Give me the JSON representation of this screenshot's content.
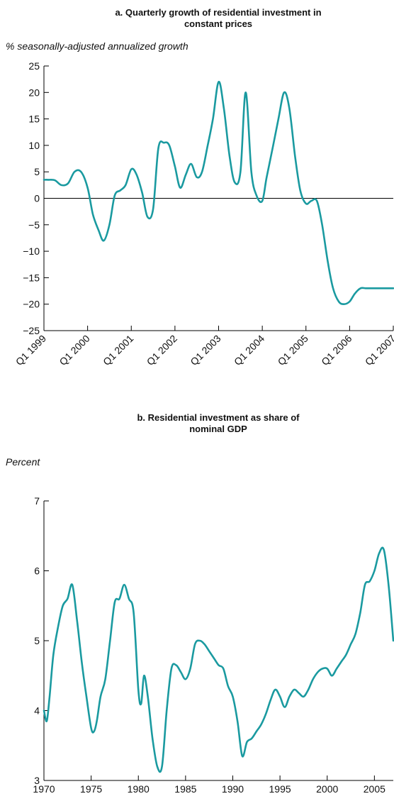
{
  "chart_data": [
    {
      "type": "line",
      "title_lines": [
        "a. Quarterly growth of residential investment in",
        "constant prices"
      ],
      "ylabel": "% seasonally-adjusted annualized growth",
      "xlabel": "",
      "ylim": [
        -25,
        25
      ],
      "xlim": [
        1999.0,
        2007.0
      ],
      "yticks": [
        25,
        20,
        15,
        10,
        5,
        0,
        -5,
        -10,
        -15,
        -20,
        -25
      ],
      "ytick_labels": [
        "25",
        "20",
        "15",
        "10",
        "5",
        "0",
        "−5",
        "−10",
        "−15",
        "−20",
        "−25"
      ],
      "xticks": [
        1999,
        2000,
        2001,
        2002,
        2003,
        2004,
        2005,
        2006,
        2007
      ],
      "xtick_labels": [
        "Q1 1999",
        "Q1 2000",
        "Q1 2001",
        "Q1 2002",
        "Q1 2003",
        "Q1 2004",
        "Q1 2005",
        "Q1 2006",
        "Q1 2007"
      ],
      "zero_line": true,
      "color": "#1a9aa0",
      "series": [
        {
          "x": [
            1999.0,
            1999.1,
            1999.25,
            1999.4,
            1999.55,
            1999.7,
            1999.85,
            2000.0,
            2000.12,
            2000.25,
            2000.37,
            2000.5,
            2000.62,
            2000.75,
            2000.87,
            2001.0,
            2001.12,
            2001.25,
            2001.37,
            2001.5,
            2001.62,
            2001.75,
            2001.87,
            2002.0,
            2002.12,
            2002.25,
            2002.37,
            2002.5,
            2002.62,
            2002.75,
            2002.87,
            2003.0,
            2003.12,
            2003.25,
            2003.37,
            2003.5,
            2003.62,
            2003.75,
            2003.87,
            2004.0,
            2004.1,
            2004.25,
            2004.37,
            2004.5,
            2004.62,
            2004.75,
            2004.87,
            2005.0,
            2005.12,
            2005.25,
            2005.37,
            2005.5,
            2005.62,
            2005.75,
            2005.87,
            2006.0,
            2006.12,
            2006.25,
            2006.37,
            2006.5,
            2006.62,
            2006.75,
            2006.87,
            2007.0
          ],
          "y": [
            3.5,
            3.5,
            3.4,
            2.5,
            2.8,
            5.0,
            5.0,
            2.0,
            -3.0,
            -6.0,
            -8.0,
            -5.0,
            0.5,
            1.5,
            2.5,
            5.5,
            4.5,
            1.0,
            -3.5,
            -2.0,
            9.5,
            10.5,
            10.0,
            6.0,
            2.0,
            4.5,
            6.5,
            4.0,
            5.0,
            10.0,
            15.0,
            22.0,
            17.0,
            8.0,
            3.0,
            5.0,
            20.0,
            5.0,
            0.5,
            -0.5,
            4.0,
            10.0,
            15.0,
            20.0,
            17.0,
            8.0,
            1.5,
            -1.0,
            -0.5,
            -0.5,
            -5.0,
            -12.0,
            -17.0,
            -19.5,
            -20.0,
            -19.5,
            -18.0,
            -17.0,
            -17.0,
            -17.0,
            -17.0,
            -17.0,
            -17.0,
            -17.0
          ]
        }
      ]
    },
    {
      "type": "line",
      "title_lines": [
        "b. Residential investment as share of",
        "nominal GDP"
      ],
      "ylabel": "Percent",
      "xlabel": "",
      "ylim": [
        3,
        7
      ],
      "xlim": [
        1970.0,
        2007.0
      ],
      "yticks": [
        7,
        6,
        5,
        4,
        3
      ],
      "ytick_labels": [
        "7",
        "6",
        "5",
        "4",
        "3"
      ],
      "xticks": [
        1970,
        1975,
        1980,
        1985,
        1990,
        1995,
        2000,
        2005
      ],
      "xtick_labels": [
        "1970",
        "1975",
        "1980",
        "1985",
        "1990",
        "1995",
        "2000",
        "2005"
      ],
      "zero_line": false,
      "color": "#1a9aa0",
      "series": [
        {
          "x": [
            1970.0,
            1970.3,
            1970.6,
            1971.0,
            1971.5,
            1972.0,
            1972.5,
            1973.0,
            1973.5,
            1974.0,
            1974.5,
            1975.0,
            1975.3,
            1975.6,
            1976.0,
            1976.5,
            1977.0,
            1977.5,
            1978.0,
            1978.5,
            1979.0,
            1979.5,
            1980.0,
            1980.3,
            1980.6,
            1981.0,
            1981.5,
            1982.0,
            1982.5,
            1983.0,
            1983.5,
            1984.0,
            1984.5,
            1985.0,
            1985.5,
            1986.0,
            1986.5,
            1987.0,
            1987.5,
            1988.0,
            1988.5,
            1989.0,
            1989.5,
            1990.0,
            1990.5,
            1991.0,
            1991.5,
            1992.0,
            1992.5,
            1993.0,
            1993.5,
            1994.0,
            1994.5,
            1995.0,
            1995.5,
            1996.0,
            1996.5,
            1997.0,
            1997.5,
            1998.0,
            1998.5,
            1999.0,
            1999.5,
            2000.0,
            2000.5,
            2001.0,
            2001.5,
            2002.0,
            2002.5,
            2003.0,
            2003.5,
            2004.0,
            2004.5,
            2005.0,
            2005.5,
            2006.0,
            2006.5,
            2007.0
          ],
          "y": [
            4.0,
            3.85,
            4.2,
            4.8,
            5.2,
            5.5,
            5.6,
            5.8,
            5.3,
            4.7,
            4.2,
            3.75,
            3.7,
            3.85,
            4.2,
            4.45,
            5.0,
            5.55,
            5.6,
            5.8,
            5.6,
            5.4,
            4.3,
            4.1,
            4.5,
            4.2,
            3.6,
            3.2,
            3.2,
            4.0,
            4.6,
            4.65,
            4.55,
            4.45,
            4.6,
            4.95,
            5.0,
            4.95,
            4.85,
            4.75,
            4.65,
            4.6,
            4.35,
            4.2,
            3.85,
            3.35,
            3.55,
            3.6,
            3.7,
            3.8,
            3.95,
            4.15,
            4.3,
            4.2,
            4.05,
            4.2,
            4.3,
            4.25,
            4.2,
            4.3,
            4.45,
            4.55,
            4.6,
            4.6,
            4.5,
            4.6,
            4.7,
            4.8,
            4.95,
            5.1,
            5.4,
            5.8,
            5.85,
            6.0,
            6.25,
            6.3,
            5.8,
            5.0
          ]
        }
      ]
    }
  ]
}
